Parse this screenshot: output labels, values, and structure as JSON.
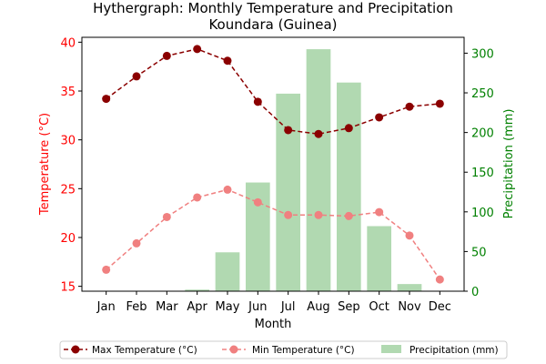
{
  "chart_data": {
    "type": "combo-line-bar",
    "title_line1": "Hythergraph: Monthly Temperature and Precipitation",
    "title_line2": "Koundara (Guinea)",
    "xlabel": "Month",
    "ylabel_left": "Temperature (°C)",
    "ylabel_right": "Precipitation (mm)",
    "categories": [
      "Jan",
      "Feb",
      "Mar",
      "Apr",
      "May",
      "Jun",
      "Jul",
      "Aug",
      "Sep",
      "Oct",
      "Nov",
      "Dec"
    ],
    "ylim_left": [
      14.5,
      40.5
    ],
    "ylim_right": [
      0,
      320
    ],
    "yticks_left": [
      15,
      20,
      25,
      30,
      35,
      40
    ],
    "yticks_right": [
      0,
      50,
      100,
      150,
      200,
      250,
      300
    ],
    "series": [
      {
        "name": "Max Temperature (°C)",
        "kind": "line",
        "axis": "left",
        "color": "#8b0000",
        "dashed": true,
        "values": [
          34.2,
          36.5,
          38.6,
          39.3,
          38.1,
          33.9,
          31.0,
          30.6,
          31.2,
          32.3,
          33.4,
          33.7
        ]
      },
      {
        "name": "Min Temperature (°C)",
        "kind": "line",
        "axis": "left",
        "color": "#f08080",
        "dashed": true,
        "values": [
          16.7,
          19.4,
          22.1,
          24.1,
          24.9,
          23.6,
          22.3,
          22.3,
          22.2,
          22.6,
          20.2,
          15.7
        ]
      },
      {
        "name": "Precipitation (mm)",
        "kind": "bar",
        "axis": "right",
        "color": "#b1d9b1",
        "values": [
          0,
          0,
          0,
          2,
          49,
          137,
          249,
          305,
          263,
          82,
          9,
          0
        ]
      }
    ],
    "legend_position": "bottom",
    "left_axis_color": "#ff0000",
    "right_axis_color": "#008000"
  }
}
